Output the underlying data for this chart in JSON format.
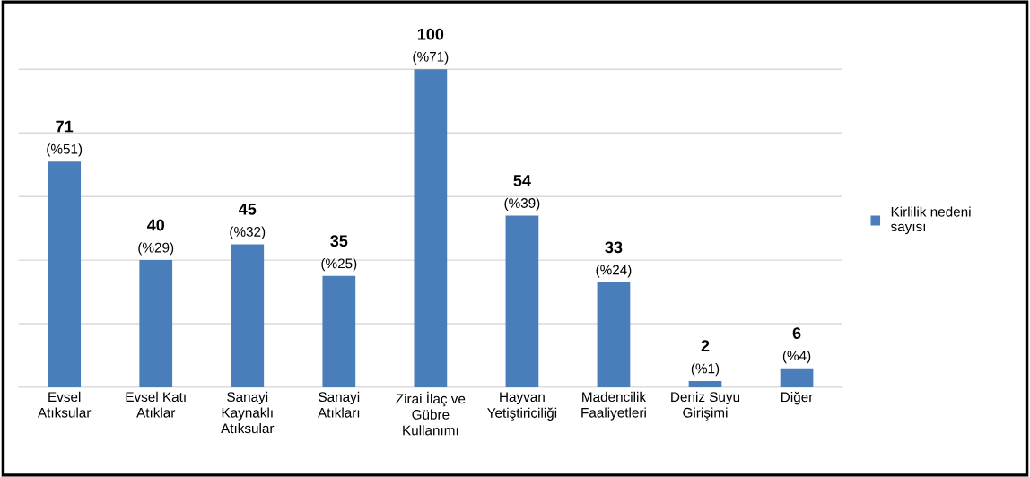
{
  "chart_data": {
    "type": "bar",
    "categories": [
      "Evsel\nAtıksular",
      "Evsel Katı\nAtıklar",
      "Sanayi\nKaynaklı\nAtıksular",
      "Sanayi\nAtıkları",
      "Zirai İlaç ve\nGübre\nKullanımı",
      "Hayvan\nYetiştiriciliği",
      "Madencilik\nFaaliyetleri",
      "Deniz Suyu\nGirişimi",
      "Diğer"
    ],
    "series": [
      {
        "name": "Kirlilik nedeni\nsayısı",
        "color": "#4a7ebb",
        "values": [
          71,
          40,
          45,
          35,
          100,
          54,
          33,
          2,
          6
        ]
      }
    ],
    "data_labels": true,
    "annotations": [
      {
        "text": "(%51)",
        "x": "Evsel\nAtıksular",
        "y": 71
      },
      {
        "text": "(%29)",
        "x": "Evsel Katı\nAtıklar",
        "y": 40
      },
      {
        "text": "(%32)",
        "x": "Sanayi\nKaynaklı\nAtıksular",
        "y": 45
      },
      {
        "text": "(%25)",
        "x": "Sanayi\nAtıkları",
        "y": 35
      },
      {
        "text": "(%71)",
        "x": "Zirai İlaç ve\nGübre\nKullanımı",
        "y": 100
      },
      {
        "text": "(%39)",
        "x": "Hayvan\nYetiştiriciliği",
        "y": 54
      },
      {
        "text": "(%24)",
        "x": "Madencilik\nFaaliyetleri",
        "y": 33
      },
      {
        "text": "(%1)",
        "x": "Deniz Suyu\nGirişimi",
        "y": 2
      },
      {
        "text": "(%4)",
        "x": "Diğer",
        "y": 6
      }
    ],
    "grid": "y",
    "legend": "right",
    "tick_labels": "x"
  }
}
